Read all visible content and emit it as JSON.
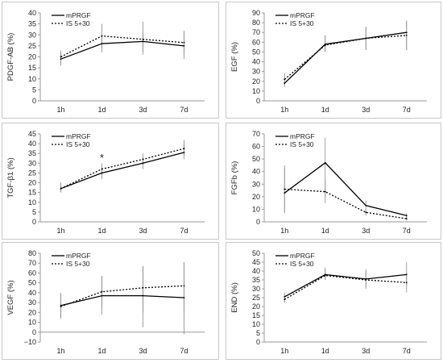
{
  "figure": {
    "series_styles": {
      "mPRGF": "solid",
      "IS 5+30": "dotted"
    },
    "line_color": "#000000",
    "errorbar_color": "#888888",
    "frame_color": "#c8c8c8"
  },
  "chart_data": [
    {
      "type": "line",
      "ylabel": "PDGF-AB (%)",
      "categories": [
        "1h",
        "1d",
        "3d",
        "7d"
      ],
      "ylim": [
        0,
        40
      ],
      "ystep": 5,
      "legend_placement": "top-left",
      "grid": false,
      "series": [
        {
          "name": "mPRGF",
          "values": [
            19,
            26,
            27,
            25
          ],
          "err_low": [
            16,
            22,
            21,
            19
          ],
          "err_high": [
            22,
            30,
            31,
            31
          ]
        },
        {
          "name": "IS 5+30",
          "values": [
            20,
            29.5,
            28,
            26.5
          ],
          "err_low": [
            17,
            24,
            22,
            21
          ],
          "err_high": [
            23,
            35,
            36,
            32
          ]
        }
      ],
      "annotations": []
    },
    {
      "type": "line",
      "ylabel": "EGF (%)",
      "categories": [
        "1h",
        "1d",
        "3d",
        "7d"
      ],
      "ylim": [
        0,
        90
      ],
      "ystep": 10,
      "legend_placement": "top-left",
      "grid": false,
      "series": [
        {
          "name": "mPRGF",
          "values": [
            18,
            58,
            64,
            70
          ],
          "err_low": [
            14,
            50,
            52,
            52
          ],
          "err_high": [
            25,
            67,
            75,
            82
          ]
        },
        {
          "name": "IS 5+30",
          "values": [
            22,
            57,
            64,
            67
          ],
          "err_low": [
            16,
            50,
            52,
            52
          ],
          "err_high": [
            28,
            67,
            76,
            82
          ]
        }
      ],
      "annotations": []
    },
    {
      "type": "line",
      "ylabel": "TGF-β1 (%)",
      "categories": [
        "1h",
        "1d",
        "3d",
        "7d"
      ],
      "ylim": [
        0,
        45
      ],
      "ystep": 5,
      "legend_placement": "top-left",
      "grid": false,
      "series": [
        {
          "name": "mPRGF",
          "values": [
            17,
            25,
            30,
            35.5
          ],
          "err_low": [
            15,
            22,
            27,
            32
          ],
          "err_high": [
            20,
            28,
            33,
            40
          ]
        },
        {
          "name": "IS 5+30",
          "values": [
            17,
            27,
            32,
            37.5
          ],
          "err_low": [
            15,
            24,
            29,
            34
          ],
          "err_high": [
            20,
            30,
            35,
            42
          ]
        }
      ],
      "annotations": [
        {
          "text": "*",
          "category": "1d",
          "y": 33
        }
      ]
    },
    {
      "type": "line",
      "ylabel": "FGFb (%)",
      "categories": [
        "1h",
        "1d",
        "3d",
        "7d"
      ],
      "ylim": [
        0,
        70
      ],
      "ystep": 10,
      "legend_placement": "top-left",
      "grid": false,
      "series": [
        {
          "name": "mPRGF",
          "values": [
            23,
            47,
            13,
            5
          ],
          "err_low": [
            7,
            20,
            9,
            3
          ],
          "err_high": [
            45,
            67,
            17,
            7
          ]
        },
        {
          "name": "IS 5+30",
          "values": [
            26,
            24,
            7.5,
            2.5
          ],
          "err_low": [
            8,
            15,
            5,
            1
          ],
          "err_high": [
            43,
            33,
            10,
            5
          ]
        }
      ],
      "annotations": []
    },
    {
      "type": "line",
      "ylabel": "VEGF (%)",
      "categories": [
        "1h",
        "1d",
        "3d",
        "7d"
      ],
      "ylim": [
        -10,
        80
      ],
      "ystep": 10,
      "legend_placement": "top-left",
      "grid": false,
      "series": [
        {
          "name": "mPRGF",
          "values": [
            27,
            37,
            37,
            35
          ],
          "err_low": [
            14,
            18,
            5,
            -2
          ],
          "err_high": [
            40,
            57,
            67,
            71
          ]
        },
        {
          "name": "IS 5+30",
          "values": [
            26,
            41,
            45,
            47
          ],
          "err_low": [
            14,
            25,
            20,
            20
          ],
          "err_high": [
            38,
            57,
            67,
            71
          ]
        }
      ],
      "annotations": []
    },
    {
      "type": "line",
      "ylabel": "END (%)",
      "categories": [
        "1h",
        "1d",
        "3d",
        "7d"
      ],
      "ylim": [
        0,
        50
      ],
      "ystep": 5,
      "legend_placement": "top-left",
      "grid": false,
      "series": [
        {
          "name": "mPRGF",
          "values": [
            25.5,
            38,
            35.5,
            38
          ],
          "err_low": [
            23,
            35,
            31,
            32
          ],
          "err_high": [
            28,
            42,
            41,
            45
          ]
        },
        {
          "name": "IS 5+30",
          "values": [
            24,
            37.5,
            35,
            33.5
          ],
          "err_low": [
            22,
            35,
            30,
            28
          ],
          "err_high": [
            26,
            41,
            40,
            39
          ]
        }
      ],
      "annotations": []
    }
  ]
}
